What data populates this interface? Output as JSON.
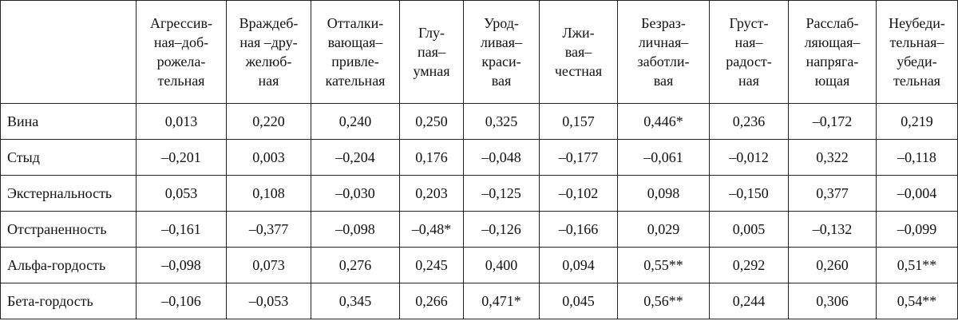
{
  "table": {
    "header": [
      [
        "Агрессив-",
        "ная–доб-",
        "рожела-",
        "тельная"
      ],
      [
        "Враждеб-",
        "ная –дру-",
        "желюб-",
        "ная"
      ],
      [
        "Отталки-",
        "вающая–",
        "привле-",
        "кательная"
      ],
      [
        "Глу-",
        "пая–",
        "умная"
      ],
      [
        "Урод-",
        "ливая–",
        "краси-",
        "вая"
      ],
      [
        "Лжи-",
        "вая–",
        "честная"
      ],
      [
        "Безраз-",
        "личная–",
        "заботли-",
        "вая"
      ],
      [
        "Груст-",
        "ная–",
        "радост-",
        "ная"
      ],
      [
        "Расслаб-",
        "ляющая–",
        "напряга-",
        "ющая"
      ],
      [
        "Неубеди-",
        "тельная–",
        "убеди-",
        "тельная"
      ]
    ],
    "rows": [
      [
        "Вина",
        "0,013",
        "0,220",
        "0,240",
        "0,250",
        "0,325",
        "0,157",
        "0,446*",
        "0,236",
        "–0,172",
        "0,219"
      ],
      [
        "Стыд",
        "–0,201",
        "0,003",
        "–0,204",
        "0,176",
        "–0,048",
        "–0,177",
        "–0,061",
        "–0,012",
        "0,322",
        "–0,118"
      ],
      [
        "Экстернальность",
        "0,053",
        "0,108",
        "–0,030",
        "0,203",
        "–0,125",
        "–0,102",
        "0,098",
        "–0,150",
        "0,377",
        "–0,004"
      ],
      [
        "Отстраненность",
        "–0,161",
        "–0,377",
        "–0,098",
        "–0,48*",
        "–0,126",
        "–0,166",
        "0,029",
        "0,005",
        "–0,132",
        "–0,099"
      ],
      [
        "Альфа-гордость",
        "–0,098",
        "0,073",
        "0,276",
        "0,245",
        "0,400",
        "0,094",
        "0,55**",
        "0,292",
        "0,260",
        "0,51**"
      ],
      [
        "Бета-гордость",
        "–0,106",
        "–0,053",
        "0,345",
        "0,266",
        "0,471*",
        "0,045",
        "0,56**",
        "0,244",
        "0,306",
        "0,54**"
      ]
    ]
  }
}
